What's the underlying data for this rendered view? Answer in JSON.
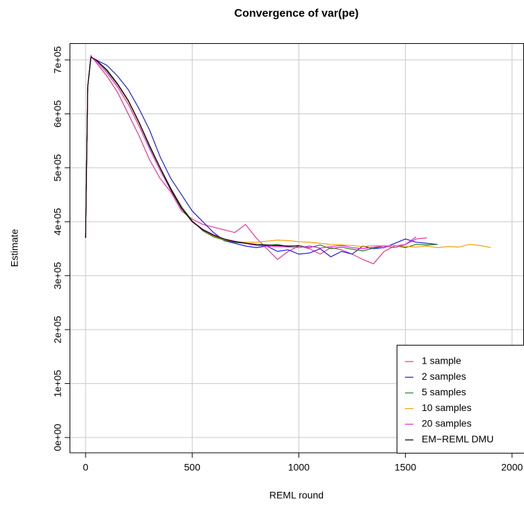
{
  "chart_data": {
    "type": "line",
    "title": "Convergence of var(pe)",
    "xlabel": "REML round",
    "ylabel": "Estimate",
    "xlim": [
      -75,
      2056
    ],
    "xticks": [
      0,
      500,
      1000,
      1500,
      2000
    ],
    "ylim": [
      -28400,
      731000
    ],
    "yticks": [
      {
        "value": 0,
        "label": "0e+00"
      },
      {
        "value": 100000,
        "label": "1e+05"
      },
      {
        "value": 200000,
        "label": "2e+05"
      },
      {
        "value": 300000,
        "label": "3e+05"
      },
      {
        "value": 400000,
        "label": "4e+05"
      },
      {
        "value": 500000,
        "label": "5e+05"
      },
      {
        "value": 600000,
        "label": "6e+05"
      },
      {
        "value": 700000,
        "label": "7e+05"
      }
    ],
    "grid": true,
    "legend": "bottomright",
    "series": [
      {
        "name": "1 sample",
        "color": "#e8308a",
        "x": [
          0,
          10,
          25,
          50,
          100,
          150,
          200,
          250,
          300,
          350,
          400,
          450,
          500,
          550,
          600,
          650,
          700,
          750,
          800,
          850,
          900,
          950,
          1000,
          1050,
          1100,
          1150,
          1200,
          1250,
          1300,
          1350,
          1400,
          1450,
          1500,
          1550,
          1600
        ],
        "values": [
          370000,
          650000,
          708000,
          695000,
          670000,
          640000,
          600000,
          560000,
          515000,
          480000,
          455000,
          420000,
          405000,
          395000,
          390000,
          385000,
          380000,
          395000,
          370000,
          350000,
          330000,
          345000,
          355000,
          350000,
          340000,
          352000,
          348000,
          340000,
          330000,
          322000,
          345000,
          355000,
          358000,
          368000,
          370000
        ]
      },
      {
        "name": "2 samples",
        "color": "#1a1ae6",
        "x": [
          0,
          10,
          25,
          50,
          100,
          150,
          200,
          250,
          300,
          350,
          400,
          450,
          500,
          550,
          600,
          650,
          700,
          750,
          800,
          850,
          900,
          950,
          1000,
          1050,
          1100,
          1150,
          1200,
          1250,
          1300,
          1350,
          1400,
          1450,
          1500,
          1550,
          1600,
          1650
        ],
        "values": [
          370000,
          650000,
          705000,
          700000,
          690000,
          670000,
          645000,
          610000,
          570000,
          520000,
          480000,
          450000,
          420000,
          400000,
          380000,
          365000,
          360000,
          355000,
          352000,
          355000,
          345000,
          348000,
          340000,
          342000,
          350000,
          335000,
          345000,
          340000,
          355000,
          350000,
          352000,
          360000,
          368000,
          362000,
          360000,
          358000
        ]
      },
      {
        "name": "5 samples",
        "color": "#1e7a1e",
        "x": [
          0,
          10,
          25,
          50,
          100,
          150,
          200,
          250,
          300,
          350,
          400,
          450,
          500,
          550,
          600,
          650,
          700,
          750,
          800,
          850,
          900,
          950,
          1000,
          1050,
          1100,
          1150,
          1200,
          1250,
          1300,
          1350,
          1400,
          1450,
          1500,
          1550,
          1600,
          1650
        ],
        "values": [
          370000,
          650000,
          705000,
          700000,
          682000,
          656000,
          625000,
          585000,
          542000,
          500000,
          462000,
          428000,
          402000,
          383000,
          372000,
          366000,
          362000,
          360000,
          358000,
          356000,
          358000,
          354000,
          356000,
          352000,
          357000,
          350000,
          353000,
          349000,
          346000,
          351000,
          355000,
          356000,
          352000,
          358000,
          357000,
          358000
        ]
      },
      {
        "name": "10 samples",
        "color": "#f0a000",
        "x": [
          0,
          10,
          25,
          50,
          100,
          150,
          200,
          250,
          300,
          350,
          400,
          450,
          500,
          550,
          600,
          650,
          700,
          750,
          800,
          850,
          900,
          950,
          1000,
          1050,
          1100,
          1150,
          1200,
          1250,
          1300,
          1350,
          1400,
          1450,
          1500,
          1550,
          1600,
          1650,
          1700,
          1750,
          1800,
          1850,
          1900
        ],
        "values": [
          370000,
          650000,
          705000,
          700000,
          680000,
          654000,
          623000,
          583000,
          540000,
          498000,
          458000,
          425000,
          400000,
          385000,
          374000,
          367000,
          363000,
          362000,
          362000,
          364000,
          366000,
          365000,
          363000,
          362000,
          360000,
          358000,
          357000,
          356000,
          354000,
          356000,
          355000,
          356000,
          354000,
          353000,
          355000,
          352000,
          354000,
          353000,
          358000,
          356000,
          352000
        ]
      },
      {
        "name": "20 samples",
        "color": "#e020e0",
        "x": [
          0,
          10,
          25,
          50,
          100,
          150,
          200,
          250,
          300,
          350,
          400,
          450,
          500,
          550,
          600,
          650,
          700,
          750,
          800,
          850,
          900,
          950,
          1000,
          1050,
          1100,
          1150,
          1200,
          1250,
          1300,
          1350,
          1400,
          1450,
          1500,
          1550
        ],
        "values": [
          370000,
          650000,
          706000,
          698000,
          676000,
          650000,
          618000,
          578000,
          535000,
          495000,
          458000,
          424000,
          401000,
          386000,
          376000,
          368000,
          364000,
          360000,
          356000,
          355000,
          354000,
          353000,
          352000,
          355000,
          351000,
          354000,
          356000,
          352000,
          350000,
          353000,
          355000,
          352000,
          358000,
          372000
        ]
      },
      {
        "name": "EM−REML DMU",
        "color": "#000000",
        "x": [
          0,
          10,
          25,
          50,
          100,
          150,
          200,
          250,
          300,
          350,
          400,
          450,
          500,
          550,
          600,
          650,
          700,
          750,
          800,
          850,
          900,
          950,
          1000
        ],
        "values": [
          370000,
          650000,
          705000,
          700000,
          680000,
          655000,
          625000,
          585000,
          540000,
          500000,
          460000,
          425000,
          400000,
          385000,
          375000,
          368000,
          363000,
          360000,
          358000,
          357000,
          356000,
          355000,
          355000
        ]
      }
    ]
  }
}
